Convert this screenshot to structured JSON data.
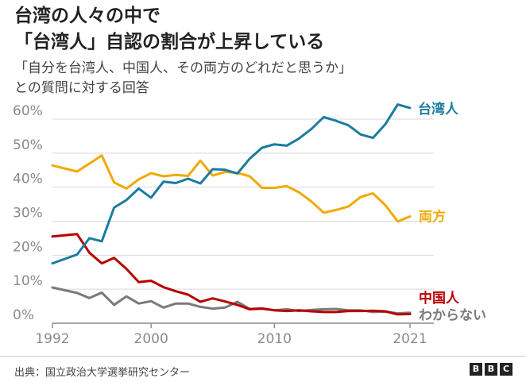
{
  "title": {
    "line1": "台湾の人々の中で",
    "line2": "「台湾人」自認の割合が上昇している"
  },
  "subtitle": {
    "line1": "「自分を台湾人、中国人、その両方のどれだと思うか」",
    "line2": "との質問に対する回答"
  },
  "source": "出典：国立政治大学選挙研究センター",
  "logo": [
    "B",
    "B",
    "C"
  ],
  "chart_data": {
    "type": "line",
    "x_ticks": [
      1992,
      2000,
      2010,
      2021
    ],
    "xlim": [
      1992,
      2021
    ],
    "ylim": [
      0,
      60
    ],
    "y_ticks": [
      0,
      10,
      20,
      30,
      40,
      50,
      60
    ],
    "y_tick_labels": [
      "0%",
      "10%",
      "20%",
      "30%",
      "40%",
      "50%",
      "60%"
    ],
    "grid": true,
    "series": [
      {
        "name": "台湾人",
        "color": "#1A7CA0",
        "x": [
          1992,
          1994,
          1995,
          1996,
          1997,
          1998,
          1999,
          2000,
          2001,
          2002,
          2003,
          2004,
          2005,
          2006,
          2007,
          2008,
          2009,
          2010,
          2011,
          2012,
          2013,
          2014,
          2015,
          2016,
          2017,
          2018,
          2019,
          2020,
          2021
        ],
        "values": [
          17.6,
          20.2,
          25.0,
          24.1,
          34.0,
          36.2,
          39.6,
          36.9,
          41.6,
          41.2,
          42.5,
          41.1,
          45.3,
          45.1,
          44.0,
          48.4,
          51.6,
          52.6,
          52.2,
          54.3,
          57.1,
          60.6,
          59.5,
          58.2,
          55.5,
          54.5,
          58.5,
          64.3,
          63.3
        ]
      },
      {
        "name": "両方",
        "color": "#F0AA00",
        "x": [
          1992,
          1994,
          1996,
          1997,
          1998,
          1999,
          2000,
          2001,
          2002,
          2003,
          2004,
          2005,
          2006,
          2007,
          2008,
          2009,
          2010,
          2011,
          2012,
          2013,
          2014,
          2015,
          2016,
          2017,
          2018,
          2019,
          2020,
          2021
        ],
        "values": [
          46.4,
          44.6,
          49.3,
          41.4,
          39.6,
          42.3,
          44.1,
          43.2,
          43.6,
          43.3,
          47.8,
          43.4,
          44.5,
          44.2,
          43.2,
          39.8,
          39.8,
          40.3,
          38.5,
          35.8,
          32.5,
          33.3,
          34.3,
          37.1,
          38.2,
          34.7,
          29.9,
          31.4
        ]
      },
      {
        "name": "中国人",
        "color": "#B80000",
        "x": [
          1992,
          1994,
          1995,
          1996,
          1997,
          1998,
          1999,
          2000,
          2001,
          2002,
          2003,
          2004,
          2005,
          2006,
          2007,
          2008,
          2009,
          2010,
          2011,
          2012,
          2013,
          2014,
          2015,
          2016,
          2017,
          2018,
          2019,
          2020,
          2021
        ],
        "values": [
          25.5,
          26.2,
          20.7,
          17.6,
          19.2,
          16.0,
          12.1,
          12.5,
          10.6,
          9.4,
          8.4,
          6.3,
          7.3,
          6.4,
          5.4,
          4.1,
          4.3,
          3.8,
          3.6,
          3.8,
          3.5,
          3.3,
          3.3,
          3.6,
          3.6,
          3.7,
          3.5,
          2.6,
          2.7
        ]
      },
      {
        "name": "わからない",
        "color": "#7A7A7A",
        "x": [
          1992,
          1994,
          1995,
          1996,
          1997,
          1998,
          1999,
          2000,
          2001,
          2002,
          2003,
          2004,
          2005,
          2006,
          2007,
          2008,
          2009,
          2010,
          2011,
          2012,
          2013,
          2014,
          2015,
          2016,
          2017,
          2018,
          2019,
          2020,
          2021
        ],
        "values": [
          10.5,
          8.9,
          7.4,
          9.0,
          5.4,
          7.9,
          5.8,
          6.5,
          4.6,
          5.8,
          5.8,
          4.8,
          4.3,
          4.6,
          6.3,
          4.2,
          4.4,
          3.8,
          4.1,
          3.6,
          3.9,
          4.1,
          4.2,
          3.8,
          3.8,
          3.3,
          3.4,
          2.9,
          3.1
        ]
      }
    ]
  }
}
